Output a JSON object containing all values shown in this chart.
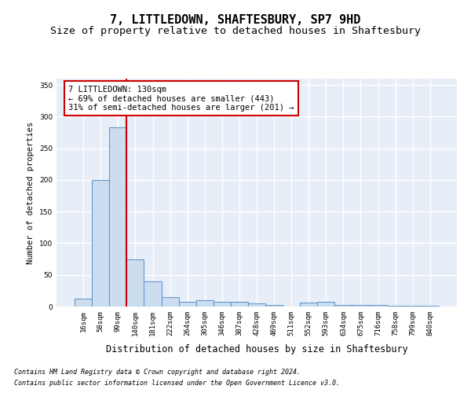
{
  "title": "7, LITTLEDOWN, SHAFTESBURY, SP7 9HD",
  "subtitle": "Size of property relative to detached houses in Shaftesbury",
  "xlabel": "Distribution of detached houses by size in Shaftesbury",
  "ylabel": "Number of detached properties",
  "footnote1": "Contains HM Land Registry data © Crown copyright and database right 2024.",
  "footnote2": "Contains public sector information licensed under the Open Government Licence v3.0.",
  "categories": [
    "16sqm",
    "58sqm",
    "99sqm",
    "140sqm",
    "181sqm",
    "222sqm",
    "264sqm",
    "305sqm",
    "346sqm",
    "387sqm",
    "428sqm",
    "469sqm",
    "511sqm",
    "552sqm",
    "593sqm",
    "634sqm",
    "675sqm",
    "716sqm",
    "758sqm",
    "799sqm",
    "840sqm"
  ],
  "values": [
    13,
    200,
    283,
    75,
    40,
    15,
    8,
    10,
    7,
    7,
    5,
    3,
    0,
    6,
    7,
    2,
    2,
    2,
    1,
    1,
    1
  ],
  "bar_color": "#ccddf0",
  "bar_edge_color": "#6699cc",
  "vline_color": "#cc0000",
  "annotation_line1": "7 LITTLEDOWN: 130sqm",
  "annotation_line2": "← 69% of detached houses are smaller (443)",
  "annotation_line3": "31% of semi-detached houses are larger (201) →",
  "annotation_box_facecolor": "white",
  "annotation_box_edgecolor": "#cc0000",
  "ylim": [
    0,
    360
  ],
  "yticks": [
    0,
    50,
    100,
    150,
    200,
    250,
    300,
    350
  ],
  "plot_bg": "#e8eef8",
  "grid_color": "white",
  "title_fontsize": 11,
  "subtitle_fontsize": 9.5,
  "xlabel_fontsize": 8.5,
  "ylabel_fontsize": 7.5,
  "tick_fontsize": 6.5,
  "annot_fontsize": 7.5,
  "footnote_fontsize": 6
}
